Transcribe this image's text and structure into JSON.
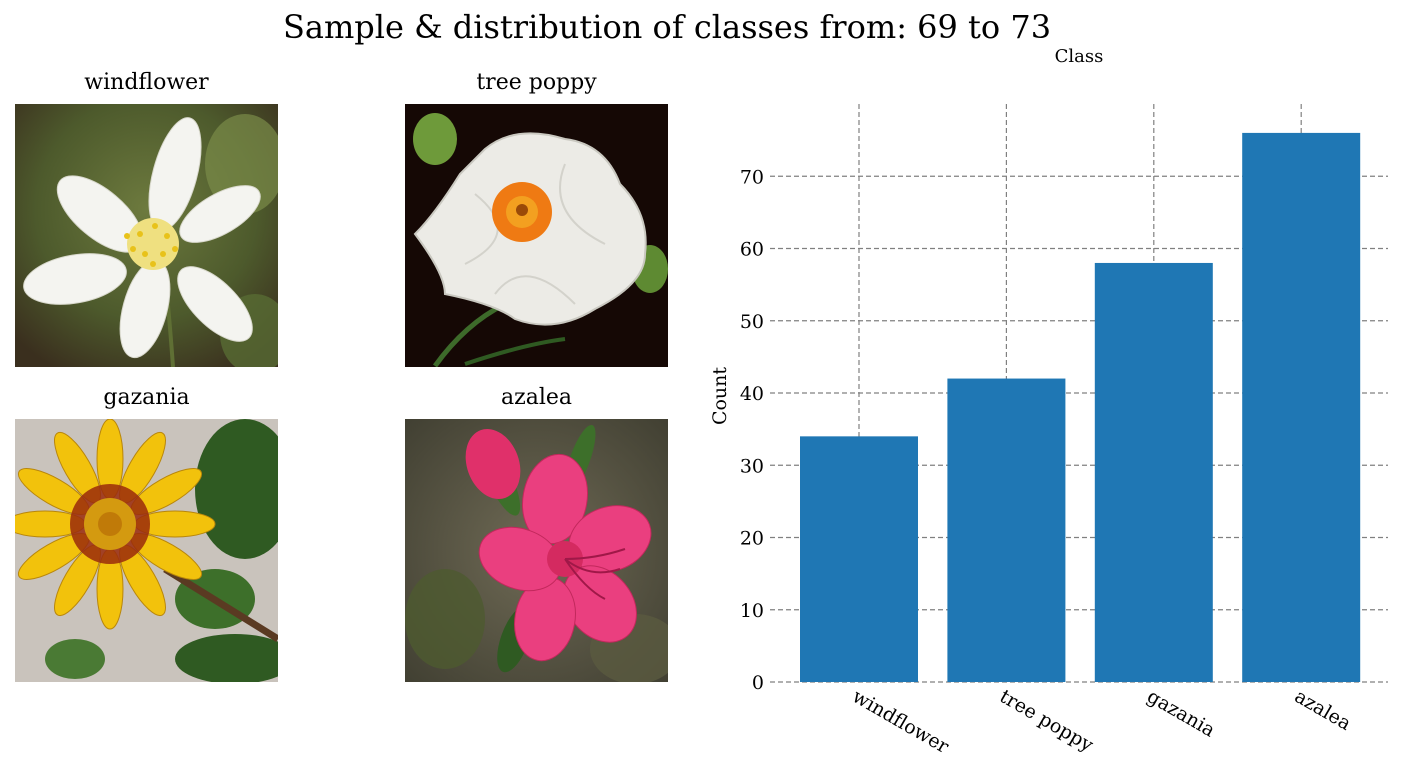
{
  "figure": {
    "title": "Sample & distribution of classes from: 69 to 73"
  },
  "samples": [
    {
      "label": "windflower"
    },
    {
      "label": "tree poppy"
    },
    {
      "label": "gazania"
    },
    {
      "label": "azalea"
    }
  ],
  "chart_data": {
    "type": "bar",
    "title": "Class",
    "xlabel": "",
    "ylabel": "Count",
    "categories": [
      "windflower",
      "tree poppy",
      "gazania",
      "azalea"
    ],
    "values": [
      34,
      42,
      58,
      76
    ],
    "ylim": [
      0,
      80
    ],
    "yticks": [
      0,
      10,
      20,
      30,
      40,
      50,
      60,
      70
    ],
    "grid": true,
    "bar_color": "#1f77b4",
    "grid_color": "#808080"
  }
}
